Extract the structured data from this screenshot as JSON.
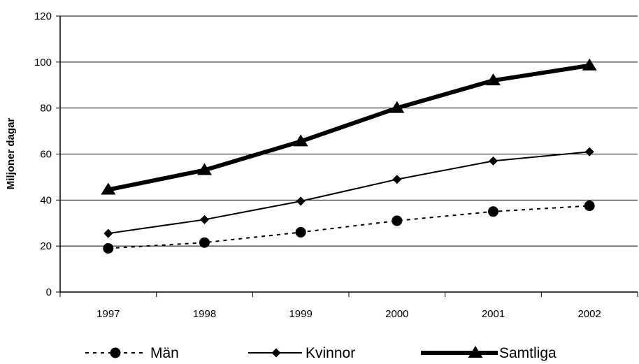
{
  "chart_data": {
    "type": "line",
    "title": "",
    "xlabel": "",
    "ylabel": "Miljoner dagar",
    "ylim": [
      0,
      120
    ],
    "yticks": [
      0,
      20,
      40,
      60,
      80,
      100,
      120
    ],
    "grid": true,
    "legend_position": "bottom",
    "categories": [
      "1997",
      "1998",
      "1999",
      "2000",
      "2001",
      "2002"
    ],
    "series": [
      {
        "name": "Män",
        "values": [
          19,
          21.5,
          26,
          31,
          35,
          37.5
        ],
        "color": "#000000",
        "line_style": "dotted",
        "marker": "circle"
      },
      {
        "name": "Kvinnor",
        "values": [
          25.5,
          31.5,
          39.5,
          49,
          57,
          61
        ],
        "color": "#000000",
        "line_style": "solid",
        "marker": "diamond"
      },
      {
        "name": "Samtliga",
        "values": [
          44.5,
          53,
          65.5,
          80,
          92,
          98.5
        ],
        "color": "#000000",
        "line_style": "thick",
        "marker": "triangle"
      }
    ]
  }
}
